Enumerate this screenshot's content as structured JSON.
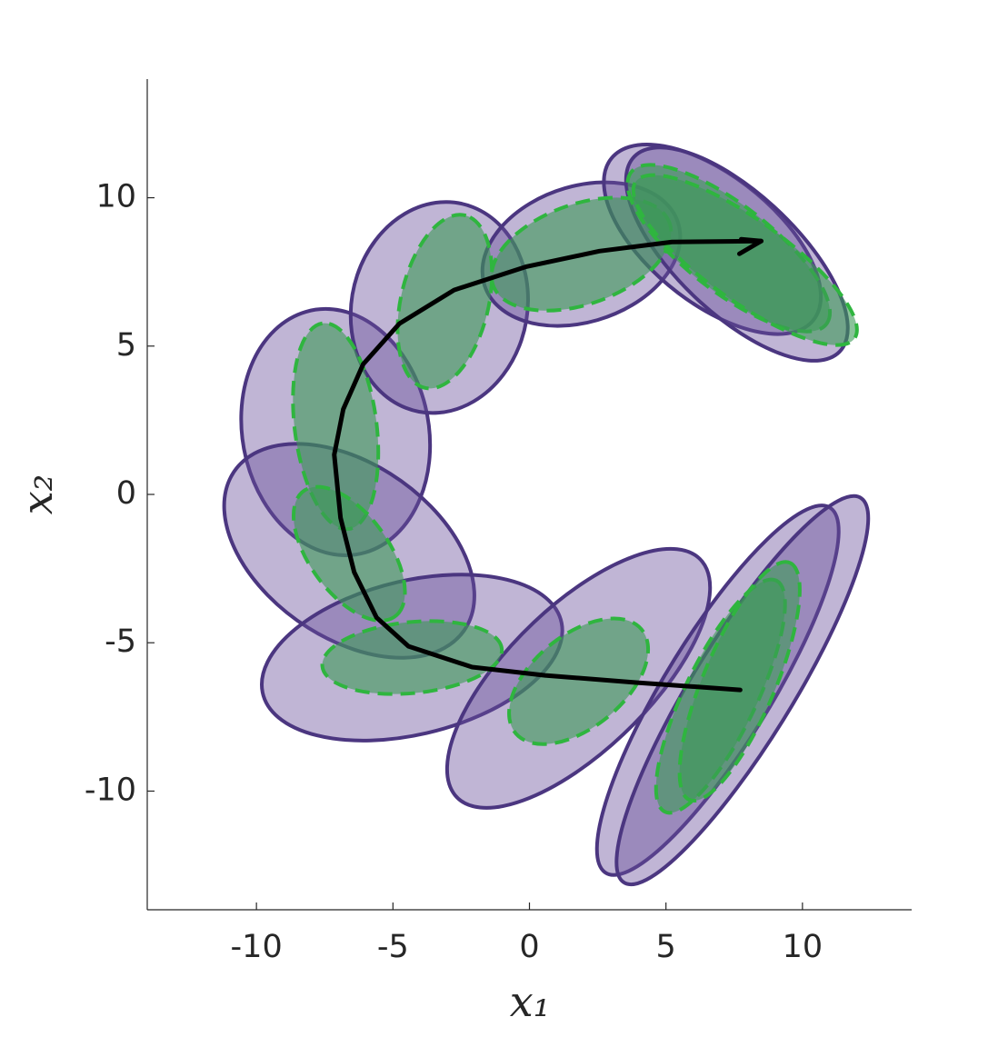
{
  "chart_data": {
    "type": "ellipse",
    "xlabel": "x₁",
    "ylabel": "x₂",
    "xlim": [
      -14,
      14
    ],
    "ylim": [
      -14,
      14
    ],
    "xticks": [
      -10,
      -5,
      0,
      5,
      10
    ],
    "yticks": [
      -10,
      -5,
      0,
      5,
      10
    ],
    "ellipse_sets": [
      {
        "color": "#4b3680",
        "fill": "#6a4f9a",
        "fill_opacity": 0.42,
        "line_style": "solid",
        "cx": [
          -7.1,
          -6.6,
          -3.3,
          1.9,
          6.7,
          7.6,
          -4.3,
          1.8,
          6.9,
          7.8
        ],
        "cy": [
          2.1,
          -1.9,
          6.3,
          8.1,
          8.6,
          8.1,
          -5.5,
          -6.2,
          -6.6,
          -6.6
        ],
        "a": [
          4.2,
          5.0,
          3.6,
          3.7,
          4.6,
          5.0,
          5.6,
          6.0,
          7.4,
          7.8
        ],
        "b": [
          3.4,
          3.0,
          3.2,
          2.3,
          2.2,
          2.1,
          2.6,
          2.5,
          1.9,
          1.8
        ],
        "angle": [
          105,
          -30,
          70,
          15,
          -35,
          -40,
          12,
          41,
          56,
          56
        ]
      },
      {
        "color": "#2fb53f",
        "fill": "#3c9a56",
        "fill_opacity": 0.6,
        "line_style": "dashed",
        "cx": [
          -7.1,
          -6.6,
          -3.1,
          1.9,
          7.3,
          7.9,
          -4.3,
          1.8,
          7.0,
          7.7
        ],
        "cy": [
          2.3,
          -2.0,
          6.5,
          8.1,
          8.3,
          7.9,
          -5.5,
          -6.3,
          -6.8,
          -6.3
        ],
        "a": [
          3.5,
          2.7,
          3.0,
          3.4,
          4.4,
          4.8,
          3.3,
          2.9,
          4.4,
          4.4
        ],
        "b": [
          1.5,
          1.4,
          1.6,
          1.7,
          1.5,
          1.4,
          1.2,
          1.6,
          1.3,
          1.3
        ],
        "angle": [
          98,
          -50,
          75,
          17,
          -35,
          -33,
          5,
          35,
          62,
          65
        ]
      }
    ],
    "trajectory": {
      "color": "#000000",
      "x": [
        7.72,
        3.9,
        0.57,
        -2.1,
        -4.43,
        -5.6,
        -6.42,
        -6.92,
        -7.15,
        -6.82,
        -6.09,
        -4.76,
        -2.76,
        -0.1,
        2.56,
        5.22,
        8.49
      ],
      "y": [
        -6.59,
        -6.34,
        -6.1,
        -5.82,
        -5.12,
        -4.15,
        -2.62,
        -0.79,
        1.34,
        2.87,
        4.39,
        5.76,
        6.89,
        7.68,
        8.2,
        8.51,
        8.54
      ]
    }
  }
}
